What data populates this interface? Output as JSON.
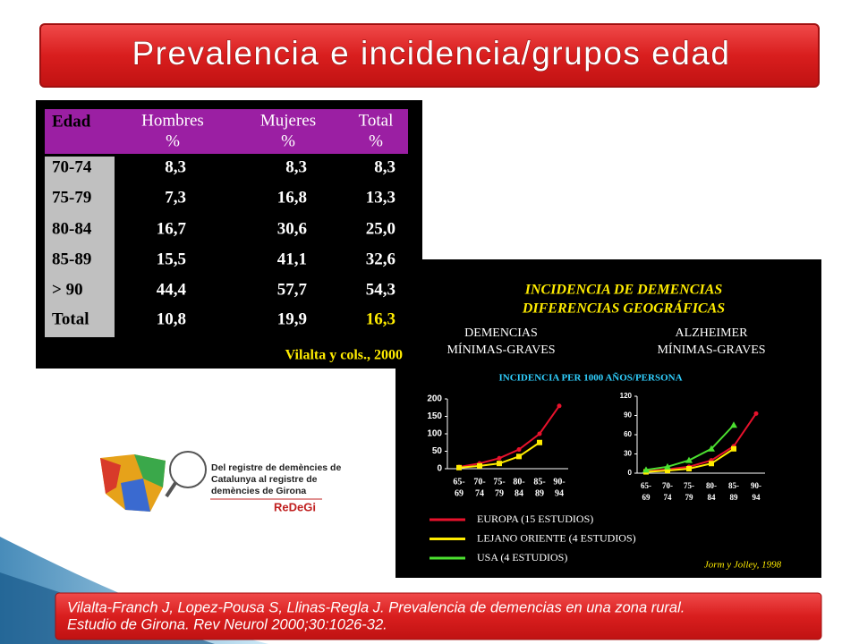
{
  "title": "Prevalencia e incidencia/grupos edad",
  "table": {
    "header": [
      [
        "Edad"
      ],
      [
        "Hombres",
        "%"
      ],
      [
        "Mujeres",
        "%"
      ],
      [
        "Total",
        "%"
      ]
    ],
    "rows": [
      [
        "70-74",
        "8,3",
        "8,3",
        "8,3"
      ],
      [
        "75-79",
        "7,3",
        "16,8",
        "13,3"
      ],
      [
        "80-84",
        "16,7",
        "30,6",
        "25,0"
      ],
      [
        "85-89",
        "15,5",
        "41,1",
        "32,6"
      ],
      [
        "> 90",
        "44,4",
        "57,7",
        "54,3"
      ],
      [
        "Total",
        "10,8",
        "19,9",
        "16,3"
      ]
    ],
    "source": "Vilalta y cols., 2000"
  },
  "figure": {
    "title": [
      "INCIDENCIA  DE  DEMENCIAS",
      "DIFERENCIAS GEOGRÁFICAS"
    ],
    "axis_label": "INCIDENCIA PER 1000 AÑOS/PERSONA",
    "legend": [
      {
        "name": "EUROPA (15 ESTUDIOS)",
        "color": "#e8122c"
      },
      {
        "name": "LEJANO ORIENTE (4 ESTUDIOS)",
        "color": "#ffec00"
      },
      {
        "name": "USA (4 ESTUDIOS)",
        "color": "#4ce030"
      }
    ],
    "charts": [
      {
        "type": "line",
        "subtitle": [
          "DEMENCIAS",
          "MÍNIMAS-GRAVES"
        ],
        "categories": [
          [
            "65-",
            "69"
          ],
          [
            "70-",
            "74"
          ],
          [
            "75-",
            "79"
          ],
          [
            "80-",
            "84"
          ],
          [
            "85-",
            "89"
          ],
          [
            "90-",
            "94"
          ]
        ],
        "ylim": [
          0,
          200
        ],
        "yticks": [
          0,
          50,
          100,
          150,
          200
        ],
        "series": [
          {
            "values": [
              5,
              15,
              30,
              55,
              100,
              180
            ]
          },
          {
            "values": [
              3,
              8,
              15,
              35,
              75,
              null
            ]
          }
        ]
      },
      {
        "type": "line",
        "subtitle": [
          "ALZHEIMER",
          "MÍNIMAS-GRAVES"
        ],
        "categories": [
          [
            "65-",
            "69"
          ],
          [
            "70-",
            "74"
          ],
          [
            "75-",
            "79"
          ],
          [
            "80-",
            "84"
          ],
          [
            "85-",
            "89"
          ],
          [
            "90-",
            "94"
          ]
        ],
        "ylim": [
          0,
          120
        ],
        "yticks": [
          0,
          30,
          60,
          90,
          120
        ],
        "series": [
          {
            "values": [
              3,
              6,
              10,
              20,
              42,
              93
            ]
          },
          {
            "values": [
              2,
              4,
              7,
              15,
              38,
              null
            ]
          },
          {
            "values": [
              5,
              10,
              20,
              38,
              75,
              null
            ]
          }
        ]
      }
    ],
    "source": "Jorm y Jolley, 1998"
  },
  "logo": {
    "text": [
      "Del registre de demències de",
      "Catalunya al registre de",
      "demències de Girona"
    ],
    "brand": "ReDeGi"
  },
  "citation": [
    "Vilalta-Franch J, Lopez-Pousa S, Llinas-Regla J. Prevalencia  de demencias en una zona rural.",
    "Estudio de Girona. Rev Neurol 2000;30:1026-32."
  ]
}
